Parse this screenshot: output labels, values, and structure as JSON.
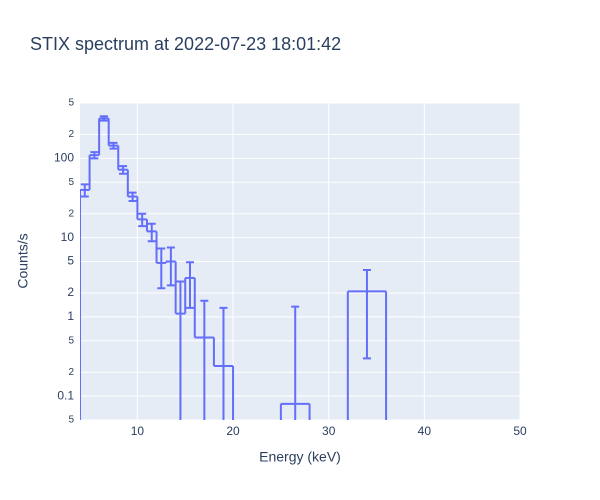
{
  "chart_data": {
    "type": "step-histogram",
    "title": "STIX spectrum at 2022-07-23 18:01:42",
    "xlabel": "Energy (keV)",
    "ylabel": "Counts/s",
    "bins": [
      4,
      5,
      6,
      7,
      8,
      9,
      10,
      11,
      12,
      13,
      14,
      15,
      16,
      18,
      20,
      22,
      25,
      28,
      32,
      36
    ],
    "values": [
      40,
      110,
      320,
      145,
      72,
      33,
      17,
      12,
      4.8,
      5.0,
      1.1,
      3.1,
      0.55,
      0.24,
      0,
      0,
      0.08,
      0,
      2.1
    ],
    "errors": [
      7,
      10,
      20,
      12,
      8,
      4,
      3,
      3,
      2.5,
      2.5,
      1.7,
      1.8,
      1.05,
      1.06,
      null,
      null,
      1.27,
      null,
      1.8
    ],
    "color": "#636efa",
    "xlim": [
      4,
      50
    ],
    "xticks": [
      10,
      20,
      30,
      40,
      50
    ],
    "ylim": [
      0.05,
      500
    ],
    "ylog": true,
    "yticks": [
      {
        "value": 500,
        "label": "5"
      },
      {
        "value": 200,
        "label": "2"
      },
      100,
      {
        "value": 50,
        "label": "5"
      },
      {
        "value": 20,
        "label": "2"
      },
      10,
      5,
      2,
      1,
      {
        "value": 0.5,
        "label": "5"
      },
      {
        "value": 0.2,
        "label": "2"
      },
      0.1,
      {
        "value": 0.05,
        "label": "5"
      }
    ],
    "grid": true
  }
}
